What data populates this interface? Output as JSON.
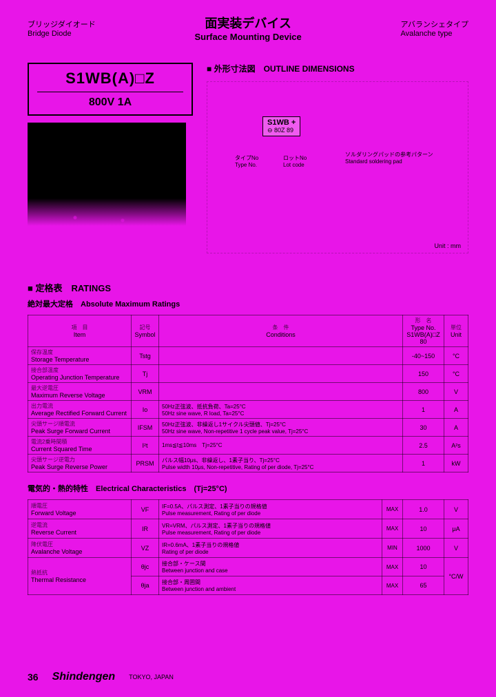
{
  "header": {
    "left_jp": "ブリッジダイオード",
    "left_en": "Bridge Diode",
    "center_jp": "面実装デバイス",
    "center_en": "Surface Mounting Device",
    "right_jp": "アバランシェタイプ",
    "right_en": "Avalanche type"
  },
  "part": {
    "number": "S1WB(A)□Z",
    "spec": "800V 1A"
  },
  "outline": {
    "title": "■ 外形寸法図　OUTLINE DIMENSIONS",
    "chip_l1": "S1WB +",
    "chip_l2": "⊖ 80Z 89",
    "label1_jp": "タイプNo",
    "label1_en": "Type No.",
    "label2_jp": "ロットNo",
    "label2_en": "Lot code",
    "label3_jp": "ソルダリングパッドの参考パターン",
    "label3_en": "Standard soldering pad",
    "unit": "Unit : mm"
  },
  "ratings": {
    "title": "■ 定格表　RATINGS",
    "subtitle": "絶対最大定格　Absolute Maximum Ratings",
    "headers": {
      "item_jp": "項　目",
      "item_en": "Item",
      "symbol_jp": "記号",
      "symbol_en": "Symbol",
      "cond_jp": "条　件",
      "cond_en": "Conditions",
      "type_jp": "形　名",
      "type_en": "Type No.",
      "type_val": "S1WB(A)□Z",
      "type_sub": "80",
      "unit_jp": "単位",
      "unit_en": "Unit"
    },
    "rows": [
      {
        "jp": "保存温度",
        "en": "Storage Temperature",
        "sym": "Tstg",
        "cond": "",
        "val": "-40~150",
        "unit": "°C"
      },
      {
        "jp": "接合部温度",
        "en": "Operating Junction Temperature",
        "sym": "Tj",
        "cond": "",
        "val": "150",
        "unit": "°C"
      },
      {
        "jp": "最大逆電圧",
        "en": "Maximum Reverse Voltage",
        "sym": "VRM",
        "cond": "",
        "val": "800",
        "unit": "V"
      },
      {
        "jp": "出力電流",
        "en": "Average Rectified Forward Current",
        "sym": "Io",
        "cond": "50Hz正弦波、抵抗負荷、Ta=25°C\n50Hz sine wave, R load, Ta=25°C",
        "val": "1",
        "unit": "A"
      },
      {
        "jp": "尖頭サージ順電流",
        "en": "Peak Surge Forward Current",
        "sym": "IFSM",
        "cond": "50Hz正弦波、非繰返し1サイクル尖頭値、Tj=25°C\n50Hz sine wave, Non-repetitive 1 cycle peak value, Tj=25°C",
        "val": "30",
        "unit": "A"
      },
      {
        "jp": "電流2乗時間積",
        "en": "Current Squared Time",
        "sym": "I²t",
        "cond": "1ms≦t≦10ms　Tj=25°C",
        "val": "2.5",
        "unit": "A²s"
      },
      {
        "jp": "尖頭サージ逆電力",
        "en": "Peak Surge Reverse Power",
        "sym": "PRSM",
        "cond": "パルス幅10μs、非繰返し、1素子当り、Tj=25°C\nPulse width 10μs, Non-repetitive, Rating of per diode, Tj=25°C",
        "val": "1",
        "unit": "kW"
      }
    ]
  },
  "elec": {
    "subtitle": "電気的・熱的特性　Electrical Characteristics　(Tj=25°C)",
    "rows": [
      {
        "jp": "順電圧",
        "en": "Forward Voltage",
        "sym": "VF",
        "cond": "IF=0.5A、パルス測定、1素子当りの規格値\nPulse measurement, Rating of per diode",
        "lim": "MAX",
        "val": "1.0",
        "unit": "V"
      },
      {
        "jp": "逆電流",
        "en": "Reverse Current",
        "sym": "IR",
        "cond": "VR=VRM、パルス測定、1素子当りの規格値\nPulse measurement, Rating of per diode",
        "lim": "MAX",
        "val": "10",
        "unit": "μA"
      },
      {
        "jp": "降伏電圧",
        "en": "Avalanche Voltage",
        "sym": "VZ",
        "cond": "IR=0.6mA、1素子当りの規格値\nRating of per diode",
        "lim": "MIN",
        "val": "1000",
        "unit": "V"
      },
      {
        "jp": "熱抵抗",
        "en": "Thermal Resistance",
        "sym": "θjc",
        "cond": "接合部・ケース間\nBetween junction and case",
        "lim": "MAX",
        "val": "10",
        "unit": "°C/W"
      },
      {
        "jp": "",
        "en": "",
        "sym": "θja",
        "cond": "接合部・周囲間\nBetween junction and ambient",
        "lim": "MAX",
        "val": "65",
        "unit": ""
      }
    ]
  },
  "footer": {
    "page": "36",
    "brand": "Shindengen",
    "location": "TOKYO, JAPAN"
  }
}
